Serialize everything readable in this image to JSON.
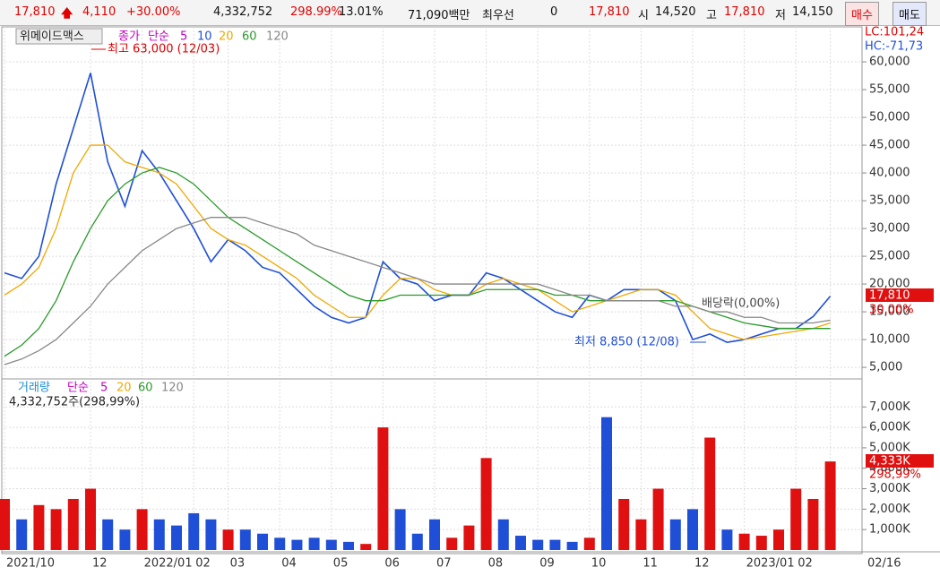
{
  "toolbar": {
    "price": "17,810",
    "change": "4,110",
    "change_pct": "+30.00%",
    "volume": "4,332,752",
    "volume_ratio": "298.99%",
    "turnover": "13.01%",
    "amount": "71,090백만",
    "best_label": "최우선",
    "best_value": "0",
    "best_price": "17,810",
    "open_label": "시",
    "open": "14,520",
    "high_label": "고",
    "high": "17,810",
    "low_label": "저",
    "low": "14,150",
    "buy": "매수",
    "sell": "매도"
  },
  "chart_data": [
    {
      "type": "line",
      "title": "위메이드맥스",
      "indicator": "단순",
      "extra_periods": [
        "5",
        "10"
      ],
      "categories": [
        "2021/10",
        null,
        null,
        null,
        null,
        "12",
        null,
        null,
        "2022/01",
        null,
        null,
        "02",
        null,
        "03",
        null,
        null,
        "04",
        null,
        null,
        "05",
        null,
        null,
        "06",
        null,
        null,
        "07",
        null,
        null,
        "08",
        null,
        null,
        "09",
        null,
        null,
        "10",
        null,
        null,
        "11",
        null,
        null,
        "12",
        null,
        null,
        "2023/01",
        null,
        null,
        "02",
        null,
        "02/16"
      ],
      "series": [
        {
          "name": "종가",
          "color": "#1f4fd6",
          "values": [
            22000,
            21000,
            25000,
            38000,
            48000,
            58000,
            42000,
            34000,
            44000,
            40000,
            35000,
            30000,
            24000,
            28000,
            26000,
            23000,
            22000,
            19000,
            16000,
            14000,
            13000,
            14000,
            24000,
            21000,
            20000,
            17000,
            18000,
            18000,
            22000,
            21000,
            19000,
            17000,
            15000,
            14000,
            18000,
            17000,
            19000,
            19000,
            19000,
            17000,
            10000,
            11000,
            9500,
            10000,
            11000,
            12000,
            12000,
            14150,
            17810
          ]
        },
        {
          "name": "20",
          "color": "#f0a800",
          "values": [
            18000,
            20000,
            23000,
            30000,
            40000,
            45000,
            45000,
            42000,
            41000,
            40000,
            38000,
            34000,
            30000,
            28000,
            27000,
            25000,
            23000,
            21000,
            18000,
            16000,
            14000,
            14000,
            18000,
            21000,
            21000,
            19000,
            18000,
            18000,
            20000,
            21000,
            20000,
            19000,
            17000,
            15000,
            16000,
            17000,
            18000,
            19000,
            19000,
            18000,
            15000,
            12000,
            11000,
            10000,
            10500,
            11000,
            11500,
            12000,
            13000
          ]
        },
        {
          "name": "60",
          "color": "#2a9a2a",
          "values": [
            7000,
            9000,
            12000,
            17000,
            24000,
            30000,
            35000,
            38000,
            40000,
            41000,
            40000,
            38000,
            35000,
            32000,
            30000,
            28000,
            26000,
            24000,
            22000,
            20000,
            18000,
            17000,
            17000,
            18000,
            18000,
            18000,
            18000,
            18000,
            19000,
            19000,
            19000,
            19000,
            18000,
            18000,
            17000,
            17000,
            17000,
            17000,
            17000,
            17000,
            16000,
            15000,
            14000,
            13000,
            12500,
            12000,
            12000,
            12000,
            12000
          ]
        },
        {
          "name": "120",
          "color": "#888888",
          "values": [
            5500,
            6500,
            8000,
            10000,
            13000,
            16000,
            20000,
            23000,
            26000,
            28000,
            30000,
            31000,
            32000,
            32000,
            32000,
            31000,
            30000,
            29000,
            27000,
            26000,
            25000,
            24000,
            23000,
            22000,
            21000,
            20000,
            20000,
            20000,
            20000,
            20000,
            20000,
            20000,
            19000,
            18000,
            18000,
            17000,
            17000,
            17000,
            17000,
            16000,
            16000,
            15000,
            15000,
            14000,
            14000,
            13000,
            13000,
            13000,
            13500
          ]
        }
      ],
      "ylim": [
        3400,
        66300
      ],
      "yticks": [
        {
          "value": 5000,
          "label": "5,000"
        },
        {
          "value": 10000,
          "label": "10,000"
        },
        {
          "value": 15000,
          "label": "15,000"
        },
        {
          "value": 20000,
          "label": "20,000"
        },
        {
          "value": 25000,
          "label": "25,000"
        },
        {
          "value": 30000,
          "label": "30,000"
        },
        {
          "value": 35000,
          "label": "35,000"
        },
        {
          "value": 40000,
          "label": "40,000"
        },
        {
          "value": 45000,
          "label": "45,000"
        },
        {
          "value": 50000,
          "label": "50,000"
        },
        {
          "value": 55000,
          "label": "55,000"
        },
        {
          "value": 60000,
          "label": "60,000"
        }
      ],
      "grid": true,
      "annotations": {
        "high": "최고 63,000 (12/03)",
        "low": "최저 8,850 (12/08)",
        "dividend": "배당락(0,00%)",
        "lc": "LC:101,24",
        "hc": "HC:-71,73",
        "last_price": "17,810",
        "last_pct": "30,00%"
      }
    },
    {
      "type": "bar",
      "title": "거래량",
      "indicator": "단순",
      "extra_periods": [
        "5",
        "20",
        "60",
        "120"
      ],
      "series": [
        {
          "name": "거래량",
          "up_color": "#e01010",
          "down_color": "#1f4fd6",
          "values": [
            2500000,
            1500000,
            2200000,
            2000000,
            2500000,
            3000000,
            1500000,
            1000000,
            2000000,
            1500000,
            1200000,
            1800000,
            1500000,
            1000000,
            1000000,
            800000,
            600000,
            500000,
            600000,
            500000,
            400000,
            300000,
            6000000,
            2000000,
            800000,
            1500000,
            600000,
            1200000,
            4500000,
            1500000,
            700000,
            500000,
            500000,
            400000,
            600000,
            6500000,
            2500000,
            1500000,
            3000000,
            1500000,
            2000000,
            5500000,
            1000000,
            800000,
            700000,
            1000000,
            3000000,
            2500000,
            4332752
          ]
        }
      ],
      "ylim": [
        0,
        8240000
      ],
      "yticks": [
        {
          "value": 1000000,
          "label": "1,000K"
        },
        {
          "value": 2000000,
          "label": "2,000K"
        },
        {
          "value": 3000000,
          "label": "3,000K"
        },
        {
          "value": 4000000,
          "label": "4,000K"
        },
        {
          "value": 5000000,
          "label": "5,000K"
        },
        {
          "value": 6000000,
          "label": "6,000K"
        },
        {
          "value": 7000000,
          "label": "7,000K"
        }
      ],
      "grid": true,
      "annotations": {
        "summary": "4,332,752주(298,99%)",
        "last_value": "4,333K",
        "last_pct": "298,99%"
      }
    }
  ]
}
